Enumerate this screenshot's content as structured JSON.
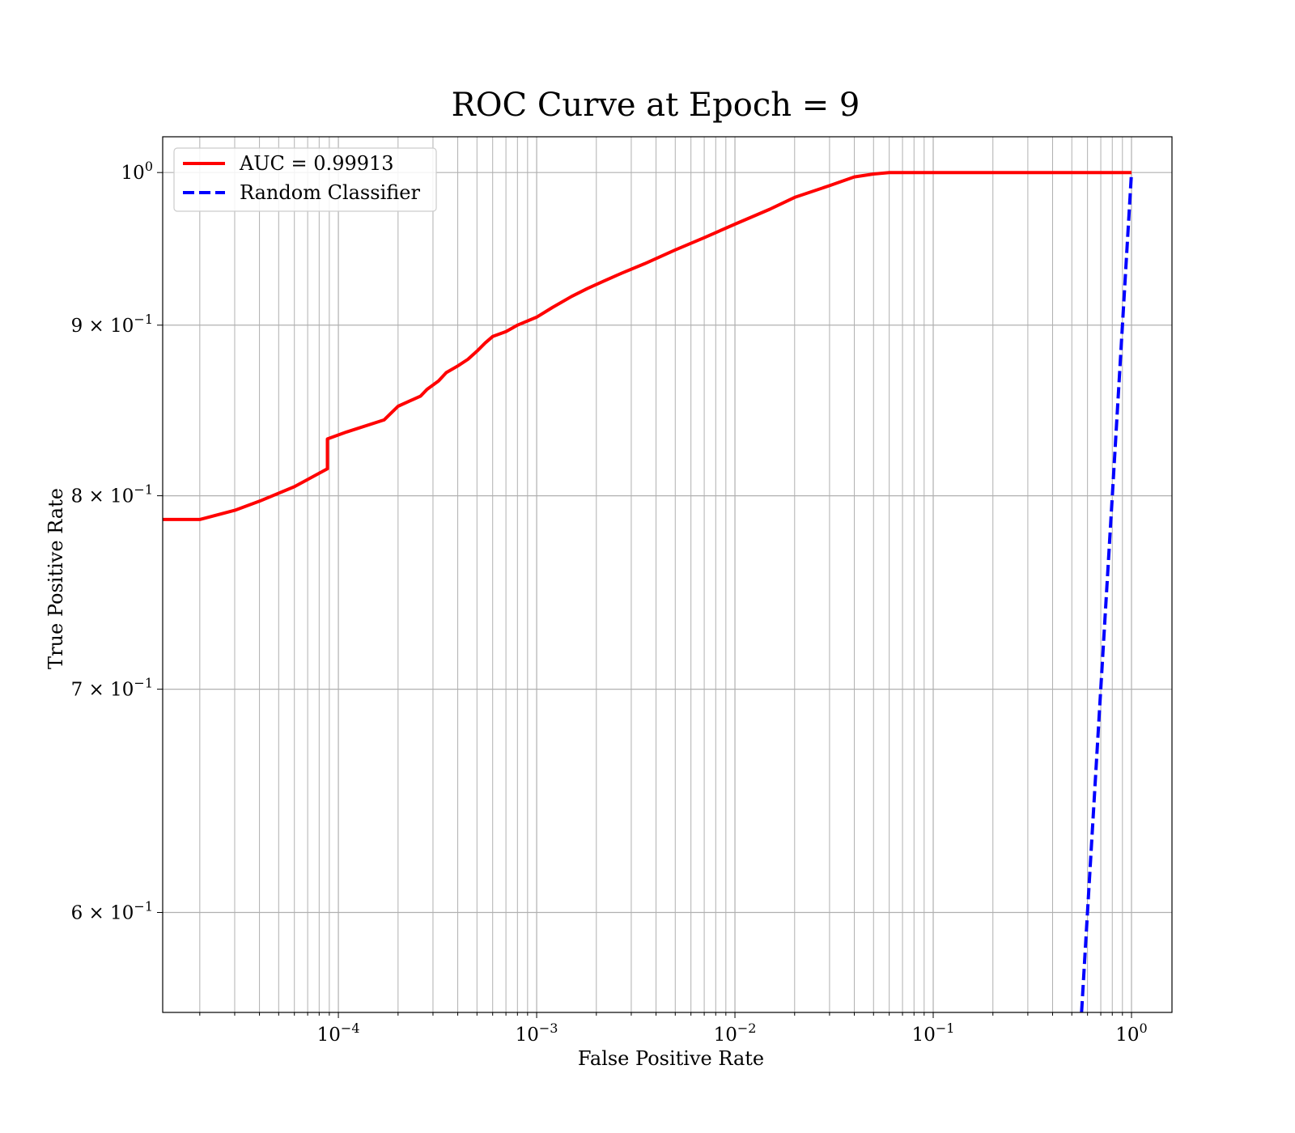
{
  "chart_data": {
    "type": "line",
    "title": "ROC Curve at Epoch = 9",
    "xlabel": "False Positive Rate",
    "ylabel": "True Positive Rate",
    "xscale": "log",
    "yscale": "log",
    "xlim": [
      1.3e-05,
      1.6
    ],
    "ylim": [
      0.56,
      1.025
    ],
    "grid": true,
    "legend_position": "top-left",
    "x_ticks": [
      {
        "value": 0.0001,
        "base": "10",
        "exp": "−4"
      },
      {
        "value": 0.001,
        "base": "10",
        "exp": "−3"
      },
      {
        "value": 0.01,
        "base": "10",
        "exp": "−2"
      },
      {
        "value": 0.1,
        "base": "10",
        "exp": "−1"
      },
      {
        "value": 1,
        "base": "10",
        "exp": "0"
      }
    ],
    "y_ticks": [
      {
        "value": 1.0,
        "base": "10",
        "exp": "0"
      },
      {
        "value": 0.9,
        "base": "9 × 10",
        "exp": "−1"
      },
      {
        "value": 0.8,
        "base": "8 × 10",
        "exp": "−1"
      },
      {
        "value": 0.7,
        "base": "7 × 10",
        "exp": "−1"
      },
      {
        "value": 0.6,
        "base": "6 × 10",
        "exp": "−1"
      }
    ],
    "series": [
      {
        "name": "AUC = 0.99913",
        "color": "#ff0000",
        "style": "solid",
        "x": [
          1.3e-05,
          2e-05,
          3e-05,
          4e-05,
          6e-05,
          8.8e-05,
          8.8e-05,
          0.00011,
          0.00017,
          0.0002,
          0.00026,
          0.00028,
          0.00032,
          0.00035,
          0.0004,
          0.00045,
          0.0005,
          0.00055,
          0.0006,
          0.0007,
          0.0008,
          0.001,
          0.0012,
          0.0015,
          0.0018,
          0.0022,
          0.0027,
          0.0035,
          0.005,
          0.007,
          0.01,
          0.015,
          0.02,
          0.03,
          0.04,
          0.05,
          0.06,
          0.1,
          0.3,
          1
        ],
        "y": [
          0.787,
          0.787,
          0.792,
          0.797,
          0.805,
          0.815,
          0.832,
          0.836,
          0.843,
          0.851,
          0.857,
          0.861,
          0.866,
          0.871,
          0.875,
          0.879,
          0.884,
          0.889,
          0.893,
          0.896,
          0.9,
          0.905,
          0.911,
          0.918,
          0.923,
          0.928,
          0.933,
          0.939,
          0.948,
          0.956,
          0.965,
          0.975,
          0.983,
          0.991,
          0.997,
          0.999,
          1.0,
          1.0,
          1.0,
          1.0
        ]
      },
      {
        "name": "Random Classifier",
        "color": "#0000ff",
        "style": "dashed",
        "x": [
          0.56,
          0.6,
          0.7,
          0.8,
          0.9,
          1.0
        ],
        "y": [
          0.56,
          0.6,
          0.7,
          0.8,
          0.9,
          1.0
        ]
      }
    ]
  }
}
